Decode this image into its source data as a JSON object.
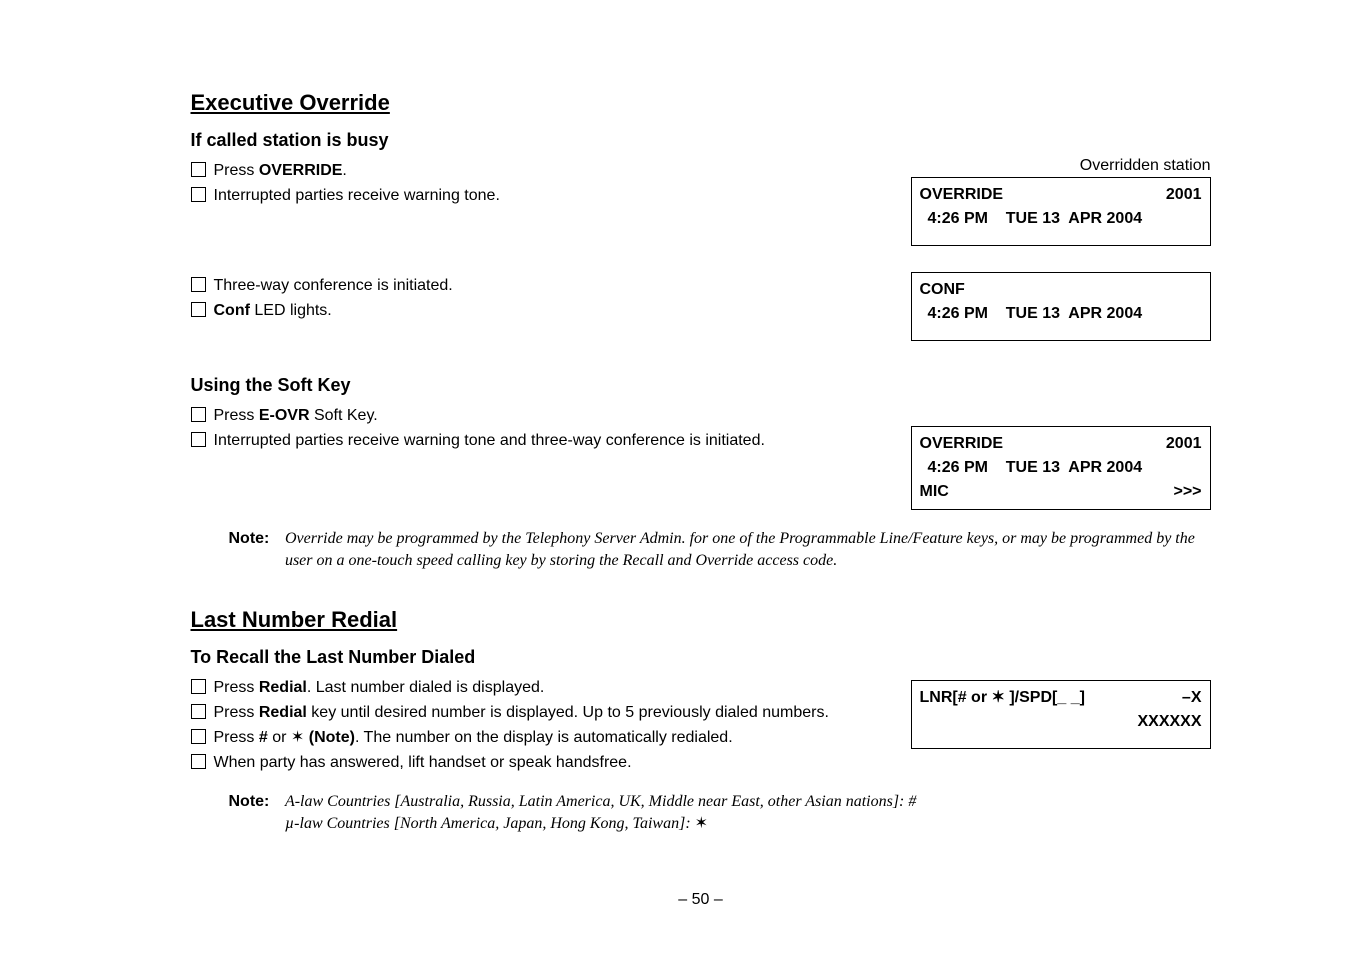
{
  "page": {
    "footer": "– 50 –"
  },
  "exec_override": {
    "title": "Executive Override",
    "busy": {
      "title": "If called station is busy",
      "steps": {
        "press_override": "Press <b>OVERRIDE</b>.",
        "interrupted_warn": "Interrupted parties receive warning tone.",
        "three_way": "Three-way conference is initiated.",
        "conf_led": "<b>Conf</b> LED lights."
      },
      "right_label": "Overridden station",
      "lcd1": {
        "r1a": "OVERRIDE",
        "r1b": "2001",
        "r2": "4:26 PM    TUE 13  APR 2004"
      },
      "lcd2": {
        "r1a": "CONF",
        "r1b": "",
        "r2": "4:26 PM    TUE 13  APR 2004"
      }
    },
    "softkey": {
      "title": "Using the Soft Key",
      "steps": {
        "press_eovr": "Press <b>E-OVR</b> Soft Key.",
        "interrupted_conf": "Interrupted parties receive warning tone and three-way conference is initiated."
      },
      "lcd": {
        "r1a": "OVERRIDE",
        "r1b": "2001",
        "r2": "4:26 PM    TUE 13  APR 2004",
        "r3a": "MIC",
        "r3b": ">>>"
      }
    },
    "note": "Override may be programmed by the Telephony Server Admin. for one of the Programmable Line/Feature keys, or may be programmed by the user on a one-touch speed calling key by storing the Recall and Override access code."
  },
  "last_redial": {
    "title": "Last Number Redial",
    "recall": {
      "title": "To Recall the Last Number Dialed",
      "steps": {
        "press_redial": "Press <b>Redial</b>. Last number dialed is displayed.",
        "press_redial_until": "Press <b>Redial</b> key until desired number is displayed. Up to 5 previously dialed numbers.",
        "press_hash": "Press <b>#</b> or <span class='star'>✶</span> <b>(Note)</b>. The number on the display is automatically redialed.",
        "lift_handset": "When party has answered, lift handset or speak handsfree."
      },
      "lcd": {
        "r1a": "LNR[# or ✶ ]/SPD[_ _]",
        "r1b": "–X",
        "r2b": "XXXXXX"
      }
    },
    "note": "A-law Countries [Australia, Russia, Latin America, UK, Middle near East, other Asian  nations]: #<br>µ-law Countries [North America, Japan, Hong Kong, Taiwan]: <span class='star'>✶</span>"
  },
  "labels": {
    "note": "Note:"
  }
}
